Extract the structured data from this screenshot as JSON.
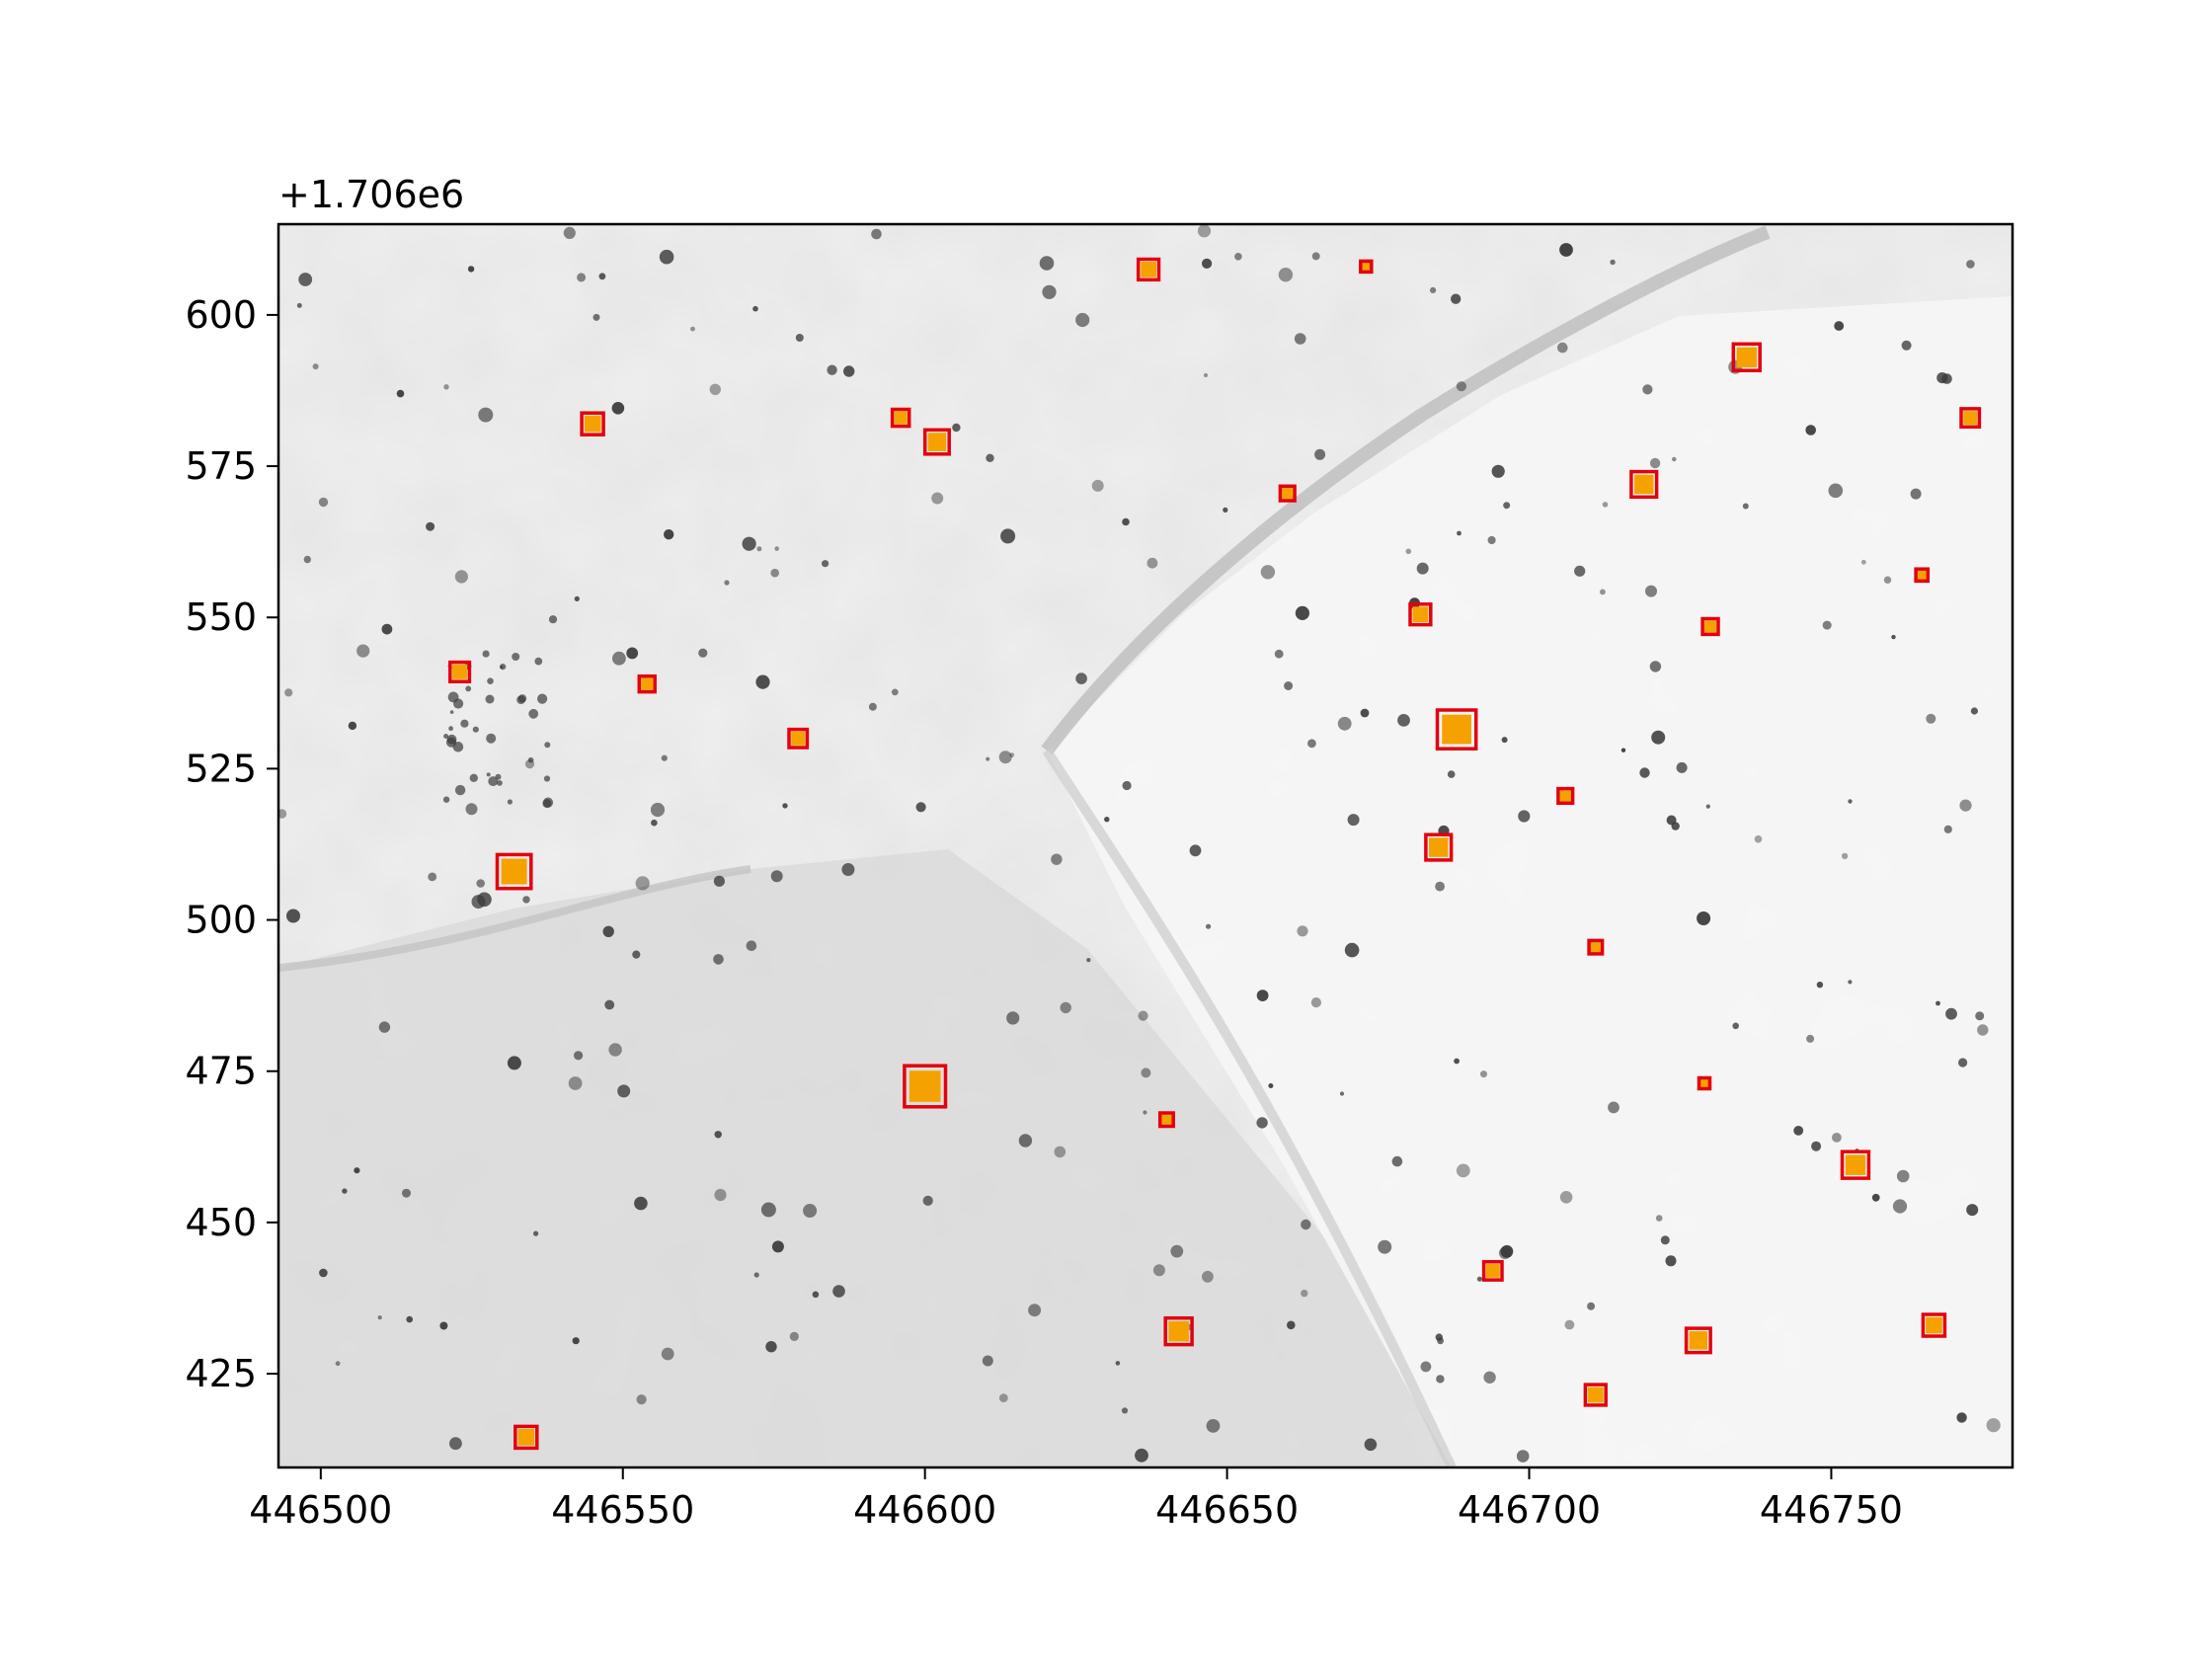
{
  "chart_data": {
    "type": "scatter",
    "title": "",
    "xlabel": "",
    "ylabel": "",
    "y_offset_label": "+1.706e6",
    "y_offset": 1706000,
    "xlim": [
      446493,
      446780
    ],
    "ylim": [
      409.5,
      615
    ],
    "x_ticks": [
      {
        "value": 446500,
        "label": "446500"
      },
      {
        "value": 446550,
        "label": "446550"
      },
      {
        "value": 446600,
        "label": "446600"
      },
      {
        "value": 446650,
        "label": "446650"
      },
      {
        "value": 446700,
        "label": "446700"
      },
      {
        "value": 446750,
        "label": "446750"
      }
    ],
    "y_ticks": [
      {
        "value": 425,
        "label": "425"
      },
      {
        "value": 450,
        "label": "450"
      },
      {
        "value": 475,
        "label": "475"
      },
      {
        "value": 500,
        "label": "500"
      },
      {
        "value": 525,
        "label": "525"
      },
      {
        "value": 550,
        "label": "550"
      },
      {
        "value": 575,
        "label": "575"
      },
      {
        "value": 600,
        "label": "600"
      }
    ],
    "grid": false,
    "legend": "none",
    "background": "grayscale satellite imagery",
    "box_color": "#e3000f",
    "fill_color": "#f5a200",
    "detections": [
      {
        "x": 446637,
        "y": 607.5,
        "size": 3.4
      },
      {
        "x": 446673,
        "y": 608,
        "size": 1.8
      },
      {
        "x": 446545,
        "y": 582,
        "size": 3.6
      },
      {
        "x": 446596,
        "y": 583,
        "size": 2.8
      },
      {
        "x": 446602,
        "y": 579,
        "size": 4.0
      },
      {
        "x": 446736,
        "y": 593,
        "size": 4.4
      },
      {
        "x": 446773,
        "y": 583,
        "size": 3.0
      },
      {
        "x": 446660,
        "y": 570.5,
        "size": 2.4
      },
      {
        "x": 446719,
        "y": 572,
        "size": 4.2
      },
      {
        "x": 446765,
        "y": 557,
        "size": 2.0
      },
      {
        "x": 446682,
        "y": 550.5,
        "size": 3.4
      },
      {
        "x": 446730,
        "y": 548.5,
        "size": 2.6
      },
      {
        "x": 446523,
        "y": 541,
        "size": 3.2
      },
      {
        "x": 446554,
        "y": 539,
        "size": 2.6
      },
      {
        "x": 446579,
        "y": 530,
        "size": 3.0
      },
      {
        "x": 446688,
        "y": 531.5,
        "size": 6.4
      },
      {
        "x": 446706,
        "y": 520.5,
        "size": 2.4
      },
      {
        "x": 446532,
        "y": 508,
        "size": 5.6
      },
      {
        "x": 446685,
        "y": 512,
        "size": 4.2
      },
      {
        "x": 446711,
        "y": 495.5,
        "size": 2.2
      },
      {
        "x": 446600,
        "y": 472.5,
        "size": 6.8
      },
      {
        "x": 446729,
        "y": 473,
        "size": 1.8
      },
      {
        "x": 446640,
        "y": 467,
        "size": 2.2
      },
      {
        "x": 446754,
        "y": 459.5,
        "size": 4.4
      },
      {
        "x": 446694,
        "y": 442,
        "size": 3.0
      },
      {
        "x": 446642,
        "y": 432,
        "size": 4.4
      },
      {
        "x": 446728,
        "y": 430.5,
        "size": 4.0
      },
      {
        "x": 446767,
        "y": 433,
        "size": 3.6
      },
      {
        "x": 446711,
        "y": 421.5,
        "size": 3.4
      },
      {
        "x": 446534,
        "y": 414.5,
        "size": 3.6
      }
    ]
  }
}
